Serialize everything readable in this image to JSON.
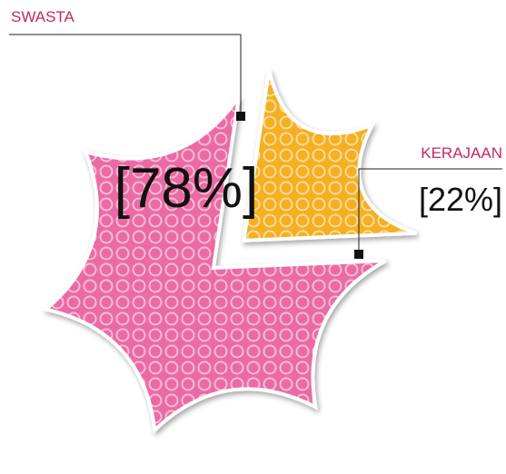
{
  "chart_data": {
    "type": "pie",
    "categories": [
      "SWASTA",
      "KERAJAAN"
    ],
    "values": [
      78,
      22
    ],
    "value_labels": [
      "[78%]",
      "[22%]"
    ],
    "colors": [
      "#ec6aa3",
      "#f4b020"
    ]
  }
}
